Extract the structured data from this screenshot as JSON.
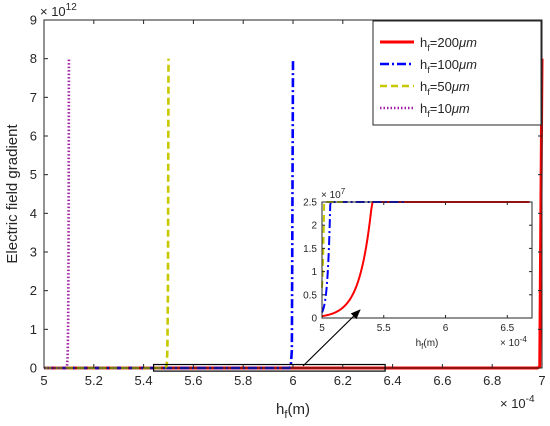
{
  "chart_data": {
    "type": "line",
    "main": {
      "xlabel_base": "h",
      "xlabel_sub": "f",
      "xlabel_unit": "(m)",
      "ylabel": "Electric field gradient",
      "x_multiplier": "× 10",
      "x_multiplier_exp": "-4",
      "y_multiplier": "× 10",
      "y_multiplier_exp": "12",
      "xlim": [
        5,
        7
      ],
      "ylim": [
        0,
        9
      ],
      "x_ticks": [
        "5",
        "5.2",
        "5.4",
        "5.6",
        "5.8",
        "6",
        "6.2",
        "6.4",
        "6.6",
        "6.8",
        "7"
      ],
      "y_ticks": [
        "0",
        "1",
        "2",
        "3",
        "4",
        "5",
        "6",
        "7",
        "8",
        "9"
      ],
      "grid": false,
      "legend_position": "top-right"
    },
    "series": [
      {
        "name_base": "h",
        "name_sub": "f",
        "name_rest": "=200",
        "name_unit": "μm",
        "color": "#ff0000",
        "style": "solid",
        "end": 7.0
      },
      {
        "name_base": "h",
        "name_sub": "f",
        "name_rest": "=100",
        "name_unit": "μm",
        "color": "#0000ff",
        "style": "dashdot",
        "end": 6.0
      },
      {
        "name_base": "h",
        "name_sub": "f",
        "name_rest": "=50",
        "name_unit": "μm",
        "color": "#c8c800",
        "style": "dashed",
        "end": 5.5
      },
      {
        "name_base": "h",
        "name_sub": "f",
        "name_rest": "=10",
        "name_unit": "μm",
        "color": "#a020a0",
        "style": "dotted",
        "end": 5.1
      }
    ],
    "inset": {
      "xlabel_base": "h",
      "xlabel_sub": "f",
      "xlabel_unit": "(m)",
      "x_multiplier": "× 10",
      "x_multiplier_exp": "-4",
      "y_multiplier": "× 10",
      "y_multiplier_exp": "7",
      "xlim": [
        5,
        6.7
      ],
      "ylim": [
        0,
        2.5
      ],
      "x_ticks": [
        "5",
        "5.5",
        "6",
        "6.5"
      ],
      "y_ticks": [
        "0",
        "0.5",
        "1",
        "1.5",
        "2",
        "2.5"
      ]
    },
    "zoom_box": {
      "x": [
        5.44,
        6.37
      ],
      "y": [
        -0.08,
        0.09
      ]
    }
  }
}
